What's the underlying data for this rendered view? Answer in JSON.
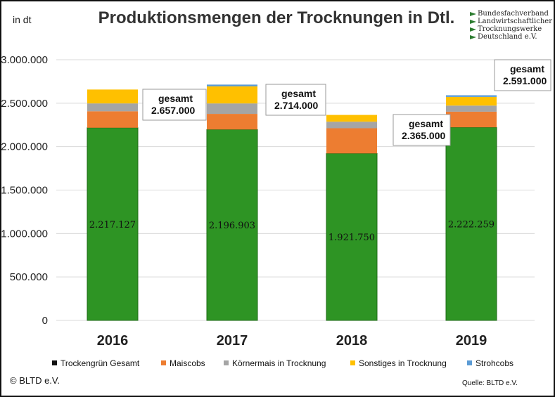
{
  "title": "Produktionsmengen der Trocknungen in Dtl.",
  "unit_label": "in dt",
  "logo": {
    "lines": [
      "Bundesfachverband",
      "Landwirtschaftlicher",
      "Trocknungswerke",
      "Deutschland e.V."
    ]
  },
  "copyright": "© BLTD e.V.",
  "source": "Quelle: BLTD e.V.",
  "colors": {
    "trockengruen": "#2e9424",
    "maiscobs": "#ed7d31",
    "koernermais": "#a5a5a5",
    "sonstiges": "#ffc000",
    "strohcobs": "#5b9bd5"
  },
  "chart_data": {
    "type": "bar",
    "stacked": true,
    "categories": [
      "2016",
      "2017",
      "2018",
      "2019"
    ],
    "ylim": [
      0,
      3000000
    ],
    "yticks": [
      0,
      500000,
      1000000,
      1500000,
      2000000,
      2500000,
      3000000
    ],
    "ytick_labels": [
      "0",
      "500.000",
      "1.000.000",
      "1.500.000",
      "2.000.000",
      "2.500.000",
      "3.000.000"
    ],
    "grid": true,
    "legend_position": "bottom",
    "series": [
      {
        "name": "Trockengrün Gesamt",
        "color": "#2e9424",
        "values": [
          2217127,
          2196903,
          1921750,
          2222259
        ],
        "labels": [
          "2.217.127",
          "2.196.903",
          "1.921.750",
          "2.222.259"
        ]
      },
      {
        "name": "Maiscobs",
        "color": "#ed7d31",
        "values": [
          190000,
          180000,
          290000,
          180000
        ]
      },
      {
        "name": "Körnermais in Trocknung",
        "color": "#a5a5a5",
        "values": [
          90000,
          120000,
          75000,
          70000
        ]
      },
      {
        "name": "Sonstiges in Trocknung",
        "color": "#ffc000",
        "values": [
          160000,
          197000,
          78000,
          100000
        ]
      },
      {
        "name": "Strohcobs",
        "color": "#5b9bd5",
        "values": [
          0,
          20000,
          0,
          19000
        ]
      }
    ],
    "totals": [
      {
        "label": "gesamt",
        "value": "2.657.000"
      },
      {
        "label": "gesamt",
        "value": "2.714.000"
      },
      {
        "label": "gesamt",
        "value": "2.365.000"
      },
      {
        "label": "gesamt",
        "value": "2.591.000"
      }
    ]
  }
}
